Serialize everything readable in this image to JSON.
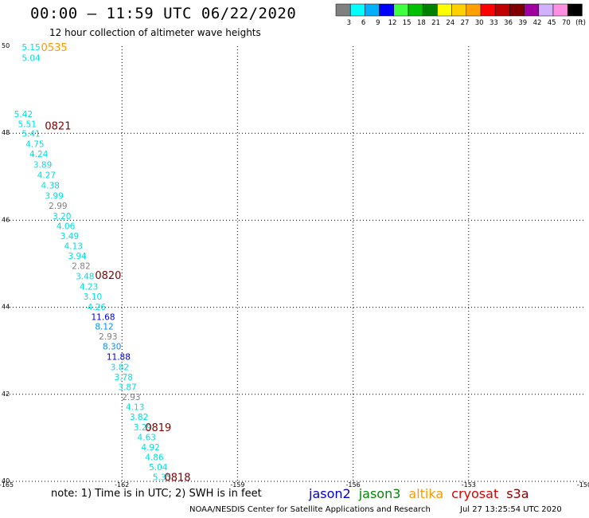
{
  "header": {
    "title": "00:00 — 11:59 UTC 06/22/2020",
    "subtitle": "12 hour collection of altimeter wave heights"
  },
  "colorbar": {
    "colors": [
      "#808080",
      "#00ffff",
      "#00b0ff",
      "#0000ff",
      "#40ff40",
      "#00c000",
      "#008000",
      "#ffff00",
      "#ffd000",
      "#ffa000",
      "#ff0000",
      "#c00000",
      "#800000",
      "#a000a0",
      "#d0b0ff",
      "#ff90e0",
      "#000000"
    ],
    "labels": [
      "3",
      "6",
      "9",
      "12",
      "15",
      "18",
      "21",
      "24",
      "27",
      "30",
      "33",
      "36",
      "39",
      "42",
      "45",
      "70",
      "(ft)"
    ]
  },
  "chart_data": {
    "type": "scatter",
    "xlim": [
      -165,
      -150
    ],
    "ylim": [
      40,
      50
    ],
    "x_ticks": [
      "-165",
      "-162",
      "-159",
      "-156",
      "-153",
      "-150"
    ],
    "y_ticks": [
      "40",
      "42",
      "44",
      "46",
      "48",
      "50"
    ],
    "grid": true,
    "points": [
      {
        "lon": -164.6,
        "lat": 49.98,
        "value": "5.15",
        "color": "#00e0e0"
      },
      {
        "lon": -164.6,
        "lat": 49.73,
        "value": "5.04",
        "color": "#00e0e0"
      },
      {
        "lon": -164.8,
        "lat": 48.44,
        "value": "5.42",
        "color": "#00e0e0"
      },
      {
        "lon": -164.7,
        "lat": 48.21,
        "value": "5.51",
        "color": "#00e0e0"
      },
      {
        "lon": -164.6,
        "lat": 47.99,
        "value": "5.41",
        "color": "#00e0e0"
      },
      {
        "lon": -164.5,
        "lat": 47.76,
        "value": "4.75",
        "color": "#00e0e0"
      },
      {
        "lon": -164.4,
        "lat": 47.53,
        "value": "4.24",
        "color": "#00e0e0"
      },
      {
        "lon": -164.3,
        "lat": 47.28,
        "value": "3.89",
        "color": "#00e0e0"
      },
      {
        "lon": -164.2,
        "lat": 47.04,
        "value": "4.27",
        "color": "#00e0e0"
      },
      {
        "lon": -164.1,
        "lat": 46.8,
        "value": "4.38",
        "color": "#00e0e0"
      },
      {
        "lon": -164.0,
        "lat": 46.57,
        "value": "3.99",
        "color": "#00e0e0"
      },
      {
        "lon": -163.9,
        "lat": 46.34,
        "value": "2.99",
        "color": "#808080"
      },
      {
        "lon": -163.8,
        "lat": 46.1,
        "value": "3.20",
        "color": "#00e0e0"
      },
      {
        "lon": -163.7,
        "lat": 45.87,
        "value": "4.06",
        "color": "#00e0e0"
      },
      {
        "lon": -163.6,
        "lat": 45.64,
        "value": "3.49",
        "color": "#00e0e0"
      },
      {
        "lon": -163.5,
        "lat": 45.41,
        "value": "4.13",
        "color": "#00e0e0"
      },
      {
        "lon": -163.4,
        "lat": 45.18,
        "value": "3.94",
        "color": "#00e0e0"
      },
      {
        "lon": -163.3,
        "lat": 44.95,
        "value": "2.82",
        "color": "#808080"
      },
      {
        "lon": -163.2,
        "lat": 44.72,
        "value": "3.48",
        "color": "#00e0e0"
      },
      {
        "lon": -163.1,
        "lat": 44.48,
        "value": "4.23",
        "color": "#00e0e0"
      },
      {
        "lon": -163.0,
        "lat": 44.25,
        "value": "3.10",
        "color": "#00e0e0"
      },
      {
        "lon": -162.9,
        "lat": 44.01,
        "value": "4.26",
        "color": "#00e0e0"
      },
      {
        "lon": -162.8,
        "lat": 43.78,
        "value": "11.68",
        "color": "#0000e0"
      },
      {
        "lon": -162.7,
        "lat": 43.56,
        "value": "8.12",
        "color": "#0090ff"
      },
      {
        "lon": -162.6,
        "lat": 43.33,
        "value": "2.93",
        "color": "#808080"
      },
      {
        "lon": -162.5,
        "lat": 43.1,
        "value": "8.30",
        "color": "#0090ff"
      },
      {
        "lon": -162.4,
        "lat": 42.87,
        "value": "11.88",
        "color": "#0000e0"
      },
      {
        "lon": -162.3,
        "lat": 42.63,
        "value": "3.82",
        "color": "#00e0e0"
      },
      {
        "lon": -162.2,
        "lat": 42.4,
        "value": "3.78",
        "color": "#00e0e0"
      },
      {
        "lon": -162.1,
        "lat": 42.17,
        "value": "3.87",
        "color": "#00e0e0"
      },
      {
        "lon": -162.0,
        "lat": 41.94,
        "value": "2.93",
        "color": "#808080"
      },
      {
        "lon": -161.9,
        "lat": 41.71,
        "value": "4.13",
        "color": "#00e0e0"
      },
      {
        "lon": -161.8,
        "lat": 41.48,
        "value": "3.82",
        "color": "#00e0e0"
      },
      {
        "lon": -161.7,
        "lat": 41.25,
        "value": "3.29",
        "color": "#00e0e0"
      },
      {
        "lon": -161.6,
        "lat": 41.02,
        "value": "4.63",
        "color": "#00e0e0"
      },
      {
        "lon": -161.5,
        "lat": 40.79,
        "value": "4.92",
        "color": "#00e0e0"
      },
      {
        "lon": -161.4,
        "lat": 40.56,
        "value": "4.86",
        "color": "#00e0e0"
      },
      {
        "lon": -161.3,
        "lat": 40.33,
        "value": "5.04",
        "color": "#00e0e0"
      },
      {
        "lon": -161.2,
        "lat": 40.1,
        "value": "5.35",
        "color": "#00e0e0"
      }
    ],
    "time_labels": [
      {
        "lon": -164.1,
        "lat": 49.98,
        "text": "0535",
        "color": "#ff9900"
      },
      {
        "lon": -164.0,
        "lat": 48.18,
        "text": "0821",
        "color": "#800000"
      },
      {
        "lon": -162.7,
        "lat": 44.74,
        "text": "0820",
        "color": "#800000"
      },
      {
        "lon": -161.4,
        "lat": 41.25,
        "text": "0819",
        "color": "#800000"
      },
      {
        "lon": -160.9,
        "lat": 40.1,
        "text": "0818",
        "color": "#800000"
      }
    ]
  },
  "footer": {
    "note": "note: 1) Time is in UTC; 2) SWH is in feet",
    "credit": "NOAA/NESDIS Center for Satellite Applications and Research",
    "timestamp": "Jul 27 13:25:54 UTC 2020",
    "legend": [
      {
        "name": "jason2",
        "color": "#0000cc"
      },
      {
        "name": "jason3",
        "color": "#008800"
      },
      {
        "name": "altika",
        "color": "#ff9900"
      },
      {
        "name": "cryosat",
        "color": "#dd0000"
      },
      {
        "name": "s3a",
        "color": "#880000"
      }
    ]
  }
}
